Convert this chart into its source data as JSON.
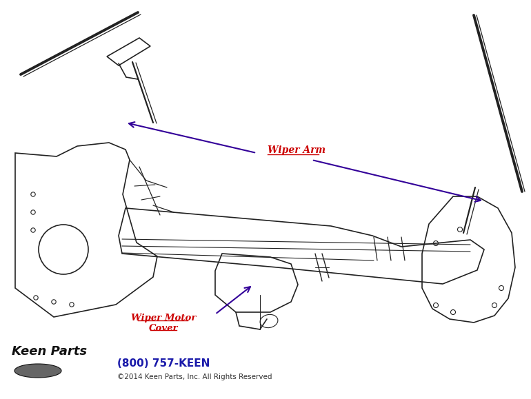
{
  "bg_color": "#ffffff",
  "label_wiper_arm": "Wiper Arm",
  "label_wiper_motor": "Wiper Motor\nCover",
  "label_color": "#cc0000",
  "arrow_color": "#330099",
  "phone": "(800) 757-KEEN",
  "phone_color": "#1a1aaa",
  "copyright": "©2014 Keen Parts, Inc. All Rights Reserved",
  "copyright_color": "#333333",
  "fig_width": 7.7,
  "fig_height": 5.79,
  "dpi": 100
}
